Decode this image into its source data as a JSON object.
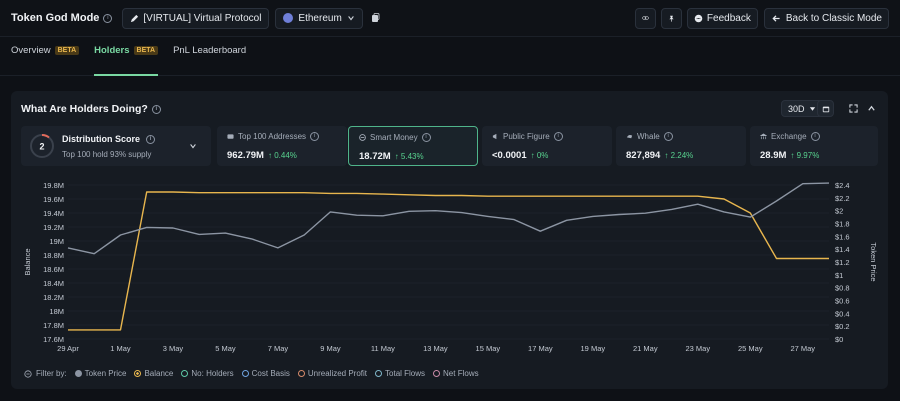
{
  "topbar": {
    "title": "Token God Mode",
    "token": "[VIRTUAL] Virtual Protocol",
    "chain": "Ethereum",
    "feedback": "Feedback",
    "back": "Back to Classic Mode"
  },
  "tabs": [
    {
      "label": "Overview",
      "badge": "BETA"
    },
    {
      "label": "Holders",
      "badge": "BETA"
    },
    {
      "label": "PnL Leaderboard"
    }
  ],
  "panel": {
    "title": "What Are Holders Doing?",
    "range": "30D"
  },
  "distribution": {
    "score": "2",
    "title": "Distribution Score",
    "sub": "Top 100 hold 93% supply"
  },
  "cards": [
    {
      "label": "Top 100 Addresses",
      "value": "962.79M",
      "change": "↑ 0.44%"
    },
    {
      "label": "Smart Money",
      "value": "18.72M",
      "change": "↑ 5.43%"
    },
    {
      "label": "Public Figure",
      "value": "<0.0001",
      "change": "↑ 0%"
    },
    {
      "label": "Whale",
      "value": "827,894",
      "change": "↑ 2.24%"
    },
    {
      "label": "Exchange",
      "value": "28.9M",
      "change": "↑ 9.97%"
    }
  ],
  "legend": {
    "filter_label": "Filter by:",
    "items": [
      "Token Price",
      "Balance",
      "No: Holders",
      "Cost Basis",
      "Unrealized Profit",
      "Total Flows",
      "Net Flows"
    ]
  },
  "chart_data": {
    "type": "line",
    "x": [
      "29 Apr",
      "30 Apr",
      "1 May",
      "2 May",
      "3 May",
      "4 May",
      "5 May",
      "6 May",
      "7 May",
      "8 May",
      "9 May",
      "10 May",
      "11 May",
      "12 May",
      "13 May",
      "14 May",
      "15 May",
      "16 May",
      "17 May",
      "18 May",
      "19 May",
      "20 May",
      "21 May",
      "22 May",
      "23 May",
      "24 May",
      "25 May",
      "26 May",
      "27 May",
      "28 May"
    ],
    "x_tick_labels": [
      "29 Apr",
      "1 May",
      "3 May",
      "5 May",
      "7 May",
      "9 May",
      "11 May",
      "13 May",
      "15 May",
      "17 May",
      "19 May",
      "21 May",
      "23 May",
      "25 May",
      "27 May"
    ],
    "left_axis": {
      "label": "Balance",
      "ticks": [
        "19.8M",
        "19.6M",
        "19.4M",
        "19.2M",
        "19M",
        "18.8M",
        "18.6M",
        "18.4M",
        "18.2M",
        "18M",
        "17.8M",
        "17.6M"
      ],
      "range": [
        17.6,
        19.8
      ]
    },
    "right_axis": {
      "label": "Token Price",
      "ticks": [
        "$2.4",
        "$2.2",
        "$2",
        "$1.8",
        "$1.6",
        "$1.4",
        "$1.2",
        "$1",
        "$0.8",
        "$0.6",
        "$0.4",
        "$0.2",
        "$0"
      ],
      "range": [
        0,
        2.4
      ]
    },
    "series": [
      {
        "name": "Balance",
        "color": "#e8b64e",
        "axis": "left",
        "values": [
          17.73,
          17.73,
          17.73,
          19.7,
          19.7,
          19.69,
          19.69,
          19.69,
          19.69,
          19.69,
          19.68,
          19.68,
          19.67,
          19.66,
          19.65,
          19.65,
          19.64,
          19.64,
          19.64,
          19.64,
          19.64,
          19.64,
          19.64,
          19.64,
          19.64,
          19.6,
          19.4,
          18.75,
          18.75,
          18.75
        ]
      },
      {
        "name": "Token Price",
        "color": "#8c95a3",
        "axis": "right",
        "values": [
          1.42,
          1.33,
          1.62,
          1.74,
          1.73,
          1.63,
          1.65,
          1.56,
          1.42,
          1.62,
          1.98,
          1.93,
          1.92,
          1.99,
          2.0,
          1.97,
          1.91,
          1.86,
          1.68,
          1.85,
          1.91,
          1.94,
          1.96,
          2.02,
          2.1,
          1.98,
          1.9,
          2.15,
          2.42,
          2.43
        ]
      }
    ],
    "grid": true
  }
}
